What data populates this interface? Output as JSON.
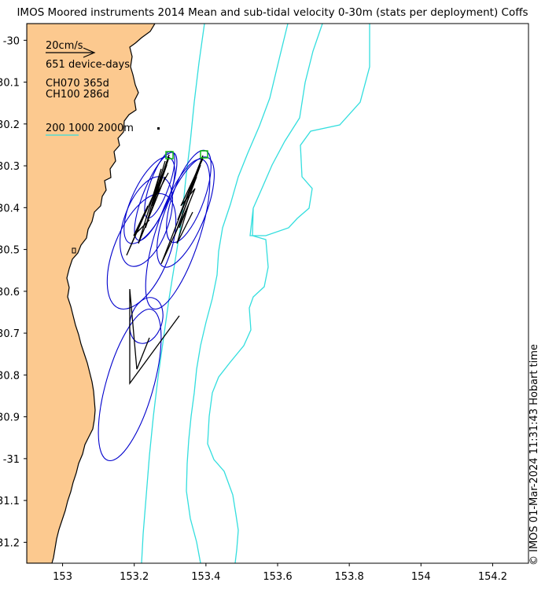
{
  "title": "IMOS Moored instruments 2014 Mean and sub-tidal velocity 0-30m (stats per deployment) Coffs",
  "copyright": "© IMOS 01-Mar-2024 11:31:43 Hobart time",
  "legend": {
    "scale_label": "20cm/s",
    "device_days": "651 device-days",
    "deployments": [
      "CH070 365d",
      "CH100 286d"
    ],
    "isobath_label": "200 1000 2000m"
  },
  "map": {
    "lon_ticks": [
      "153",
      "153.2",
      "153.4",
      "153.6",
      "153.8",
      "154",
      "154.2"
    ],
    "lat_ticks": [
      "-30",
      "-30.1",
      "-30.2",
      "-30.3",
      "-30.4",
      "-30.5",
      "-30.6",
      "-30.7",
      "-30.8",
      "-30.9",
      "-31",
      "-31.1",
      "-31.2"
    ],
    "xlim": [
      152.9,
      154.3
    ],
    "ylim": [
      -31.25,
      -29.96
    ],
    "colors": {
      "land": "#fcc98f",
      "coastline": "#000000",
      "isobath": "#33dede",
      "ellipse": "#0000cc",
      "vector": "#000000",
      "mooring": "#11bb11"
    },
    "moorings": [
      {
        "name": "CH070",
        "lon": 153.3,
        "lat": -30.27
      },
      {
        "name": "CH100",
        "lon": 153.4,
        "lat": -30.26
      }
    ]
  }
}
